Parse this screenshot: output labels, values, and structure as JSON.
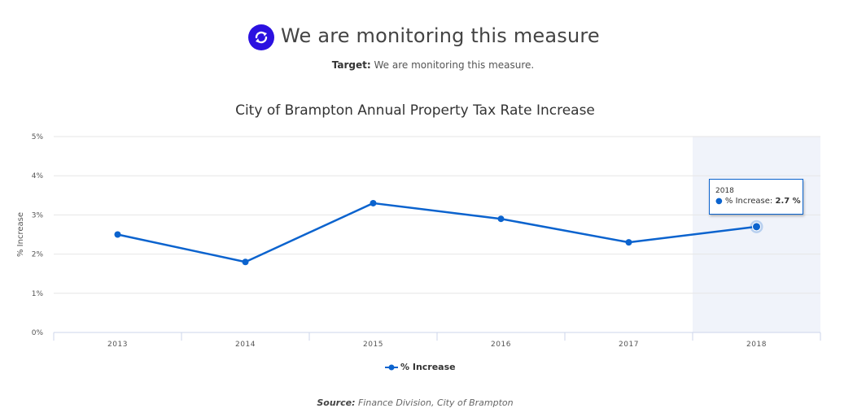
{
  "header": {
    "status_icon": "refresh-circle-icon",
    "status_title": "We are monitoring this measure",
    "target_label": "Target:",
    "target_text": "We are monitoring this measure."
  },
  "colors": {
    "accent": "#2b11e0",
    "series": "#0b63ce",
    "highlight_band": "#f0f3fa",
    "grid": "#e6e6e6"
  },
  "chart_data": {
    "type": "line",
    "title": "City of Brampton Annual Property Tax Rate Increase",
    "xlabel": "",
    "ylabel": "% Increase",
    "categories": [
      "2013",
      "2014",
      "2015",
      "2016",
      "2017",
      "2018"
    ],
    "series": [
      {
        "name": "% Increase",
        "values": [
          2.5,
          1.8,
          3.3,
          2.9,
          2.3,
          2.7
        ]
      }
    ],
    "ylim": [
      0,
      5
    ],
    "yticks": [
      "0%",
      "1%",
      "2%",
      "3%",
      "4%",
      "5%"
    ],
    "grid": true,
    "legend": "bottom-center",
    "highlighted_category": "2018",
    "tooltip": {
      "category": "2018",
      "series_label": "% Increase:",
      "value_text": "2.7 %"
    }
  },
  "footer": {
    "source_label": "Source:",
    "source_text": "Finance Division, City of Brampton"
  }
}
